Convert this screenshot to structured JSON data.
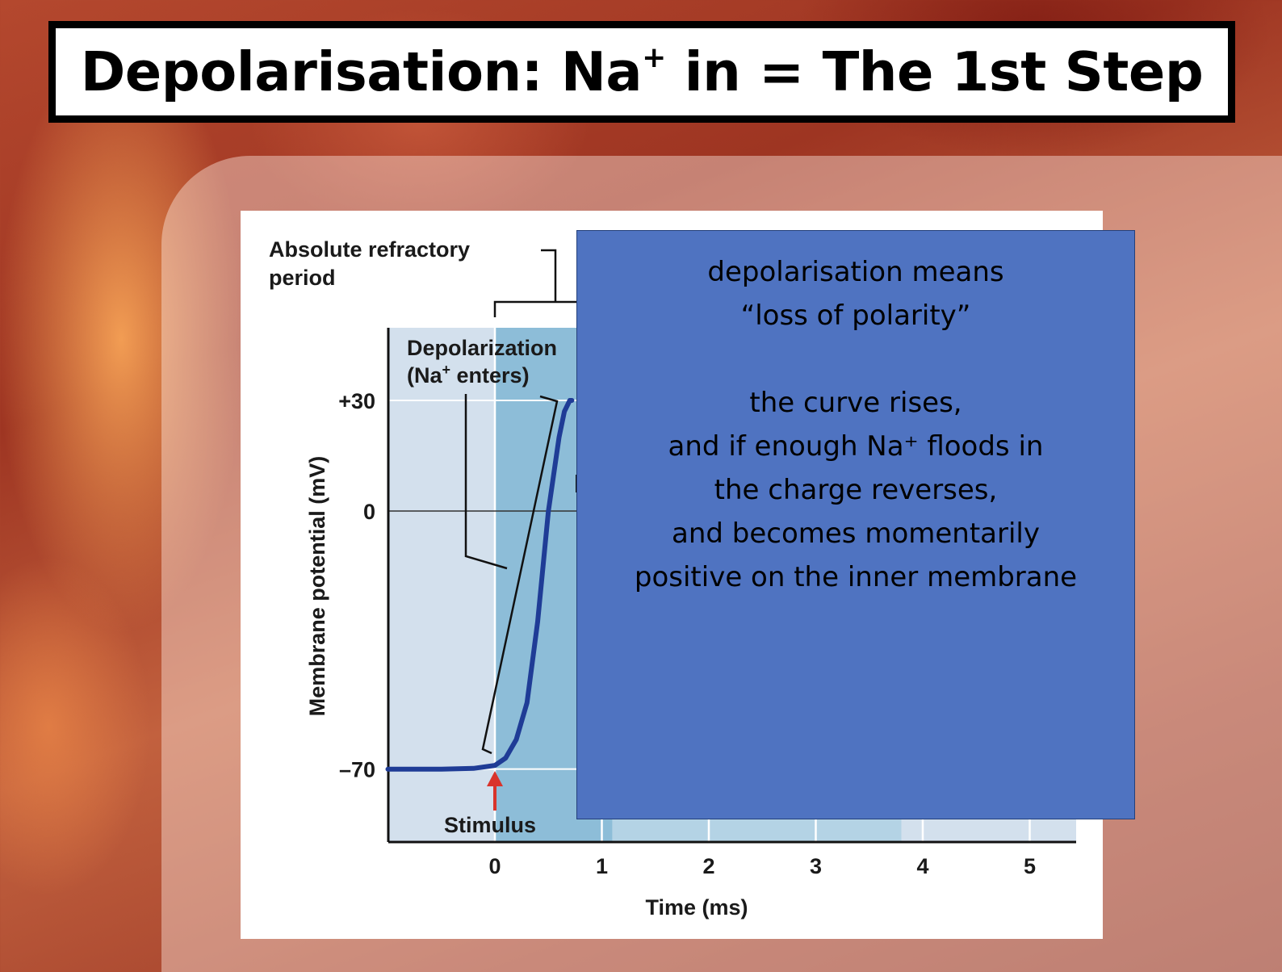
{
  "slide": {
    "title_prefix": "Depolarisation:  Na",
    "title_sup": "+",
    "title_suffix": " in = The 1st Step"
  },
  "chart_data": {
    "type": "line",
    "title": "",
    "xlabel": "Time (ms)",
    "ylabel": "Membrane potential (mV)",
    "x_ticks": [
      "0",
      "1",
      "2",
      "3",
      "4",
      "5"
    ],
    "y_ticks": [
      "+30",
      "0",
      "–70"
    ],
    "y_tick_values": [
      30,
      0,
      -70
    ],
    "xlim": [
      -1,
      5.45
    ],
    "ylim": [
      -90,
      50
    ],
    "grid": true,
    "series": [
      {
        "color": "#1f3c96",
        "x": [
          -1,
          -0.5,
          -0.2,
          0,
          0.1,
          0.2,
          0.3,
          0.4,
          0.5,
          0.6,
          0.65,
          0.7,
          0.72
        ],
        "y": [
          -70,
          -70,
          -69.8,
          -69,
          -67,
          -62,
          -52,
          -30,
          0,
          20,
          27,
          30,
          30
        ]
      }
    ],
    "annotations": {
      "absolute_refractory_line1": "Absolute refractory",
      "absolute_refractory_line2": "period",
      "depolarization_line1": "Depolarization",
      "depolarization_line2_a": "(Na",
      "depolarization_sup": "+",
      "depolarization_line2_b": " enters)",
      "stimulus": "Stimulus"
    },
    "colors": {
      "resting_region": "#d3e0ed",
      "depolarization_region": "#8dbdd8",
      "refractory_region": "#b4d3e5",
      "curve": "#1f3c96",
      "stimulus_arrow": "#d9342b"
    }
  },
  "note_box": {
    "lines": [
      "depolarisation means",
      "“loss of polarity”",
      "",
      "the curve rises,",
      "and if enough Na⁺ floods in",
      "the charge reverses,",
      "and becomes momentarily",
      "positive on the inner membrane"
    ],
    "background": "#4f73c1"
  }
}
